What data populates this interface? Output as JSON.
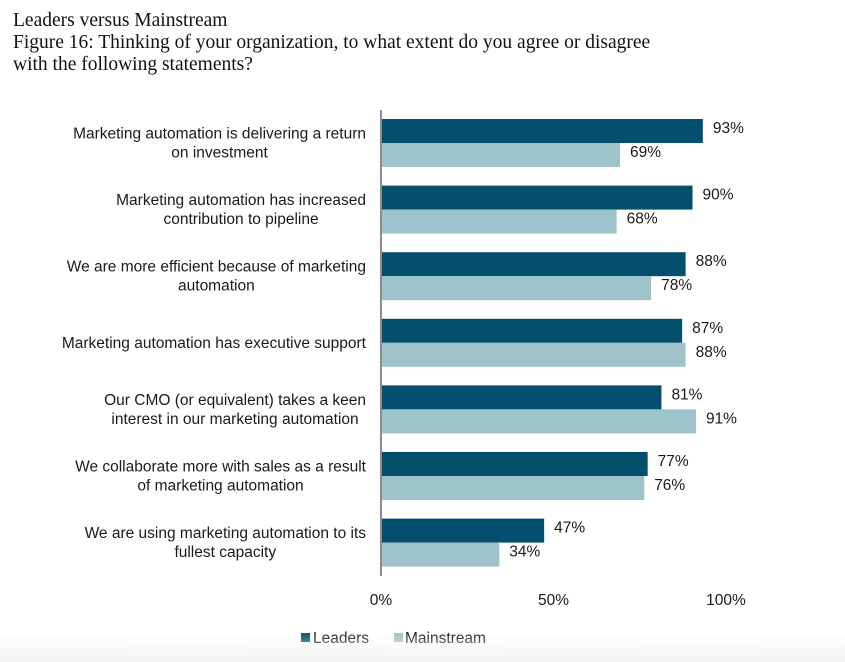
{
  "header": {
    "title": "Leaders versus Mainstream",
    "subtitle_line1": "Figure 16: Thinking of your organization, to what extent do you agree or disagree",
    "subtitle_line2": "with the following statements?"
  },
  "colors": {
    "leaders": "#044f6e",
    "mainstream": "#9fc3ca",
    "axis": "#8c8c8c"
  },
  "chart_data": {
    "type": "bar",
    "orientation": "horizontal",
    "title": "Figure 16: Thinking of your organization, to what extent do you agree or disagree with the following statements?",
    "categories": [
      [
        "Marketing automation is delivering a return",
        "on investment"
      ],
      [
        "Marketing automation has increased",
        "contribution to pipeline"
      ],
      [
        "We are more efficient because of marketing",
        "automation"
      ],
      [
        "Marketing automation has executive support"
      ],
      [
        "Our CMO (or equivalent) takes a keen",
        "interest in our marketing automation"
      ],
      [
        "We collaborate more with sales as a result",
        "of marketing automation"
      ],
      [
        "We are using marketing automation to its",
        "fullest capacity"
      ]
    ],
    "series": [
      {
        "name": "Leaders",
        "values": [
          93,
          90,
          88,
          87,
          81,
          77,
          47
        ],
        "labels": [
          "93%",
          "90%",
          "88%",
          "87%",
          "81%",
          "77%",
          "47%"
        ]
      },
      {
        "name": "Mainstream",
        "values": [
          69,
          68,
          78,
          88,
          91,
          76,
          34
        ],
        "labels": [
          "69%",
          "68%",
          "78%",
          "88%",
          "91%",
          "76%",
          "34%"
        ]
      }
    ],
    "xlim": [
      0,
      100
    ],
    "xticks": [
      0,
      50,
      100
    ],
    "xtick_labels": [
      "0%",
      "50%",
      "100%"
    ],
    "xlabel": "",
    "ylabel": "",
    "grid": false,
    "legend": [
      "Leaders",
      "Mainstream"
    ],
    "legend_position": "bottom-left"
  }
}
